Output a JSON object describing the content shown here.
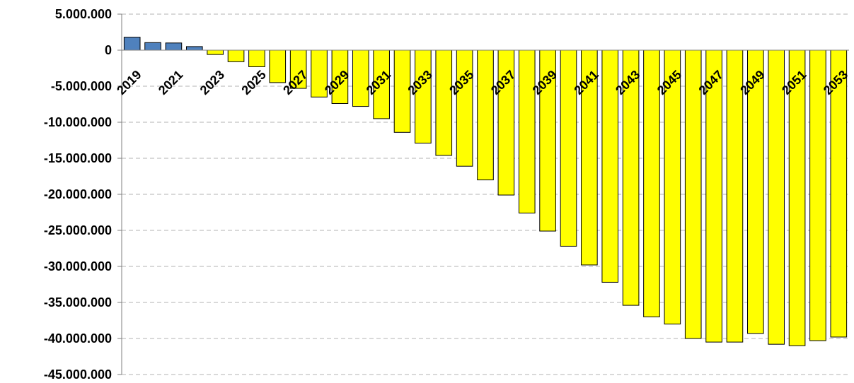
{
  "chart_data": {
    "type": "bar",
    "title": "",
    "xlabel": "",
    "ylabel": "",
    "categories": [
      "2019",
      "2020",
      "2021",
      "2022",
      "2023",
      "2024",
      "2025",
      "2026",
      "2027",
      "2028",
      "2029",
      "2030",
      "2031",
      "2032",
      "2033",
      "2034",
      "2035",
      "2036",
      "2037",
      "2038",
      "2039",
      "2040",
      "2041",
      "2042",
      "2043",
      "2044",
      "2045",
      "2046",
      "2047",
      "2048",
      "2049",
      "2050",
      "2051",
      "2052",
      "2053"
    ],
    "x_tick_labels": [
      "2019",
      "2021",
      "2023",
      "2025",
      "2027",
      "2029",
      "2031",
      "2033",
      "2035",
      "2037",
      "2039",
      "2041",
      "2043",
      "2045",
      "2047",
      "2049",
      "2051",
      "2053"
    ],
    "values": [
      1800000,
      1050000,
      1000000,
      500000,
      -600000,
      -1600000,
      -2300000,
      -4500000,
      -5300000,
      -6500000,
      -7400000,
      -7800000,
      -9500000,
      -11400000,
      -12900000,
      -14600000,
      -16100000,
      -18000000,
      -20100000,
      -22600000,
      -25100000,
      -27200000,
      -29800000,
      -32200000,
      -35400000,
      -37000000,
      -38000000,
      -40000000,
      -40500000,
      -40500000,
      -39300000,
      -40800000,
      -41000000,
      -40300000,
      -39800000
    ],
    "ylim": [
      -45000000,
      5000000
    ],
    "y_tick_labels": [
      "5.000.000",
      "0",
      "-5.000.000",
      "-10.000.000",
      "-15.000.000",
      "-20.000.000",
      "-25.000.000",
      "-30.000.000",
      "-35.000.000",
      "-40.000.000",
      "-45.000.000"
    ],
    "grid": true,
    "colors": {
      "positive": "#4f81bd",
      "negative": "#ffff00",
      "outline": "#000000",
      "grid": "#b3b3b3"
    }
  }
}
